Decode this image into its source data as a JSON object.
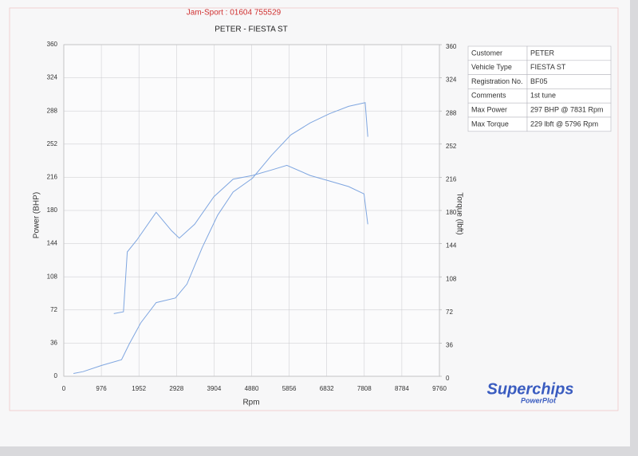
{
  "header": {
    "company": "Jam-Sport : 01604 755529"
  },
  "chart_data": {
    "type": "line",
    "title": "PETER - FIESTA ST",
    "x_label": "Rpm",
    "y_label": "Power (BHP)",
    "y2_label": "Torque (lbft)",
    "xlim": [
      0,
      9760
    ],
    "xticks": [
      0,
      976,
      1952,
      2928,
      3904,
      4880,
      5856,
      6832,
      7808,
      8784,
      9760
    ],
    "ylim": [
      0,
      360
    ],
    "yticks": [
      0,
      36,
      72,
      108,
      144,
      180,
      216,
      252,
      288,
      324,
      360
    ],
    "y2lim": [
      0,
      360
    ],
    "y2ticks": [
      0,
      36,
      72,
      108,
      144,
      180,
      216,
      252,
      288,
      324,
      360
    ],
    "grid": true,
    "series": [
      {
        "color": "#7fa6e0",
        "x": [
          250,
          500,
          1000,
          1500,
          1700,
          2000,
          2400,
          2900,
          3200,
          3600,
          4000,
          4400,
          4900,
          5400,
          5900,
          6400,
          6900,
          7400,
          7831,
          7900
        ],
        "values": [
          3,
          5,
          12,
          18,
          35,
          58,
          80,
          85,
          100,
          140,
          175,
          200,
          215,
          240,
          262,
          275,
          285,
          293,
          297,
          260
        ]
      },
      {
        "color": "#7fa6e0",
        "axis": "y2",
        "x": [
          1300,
          1550,
          1650,
          1900,
          2400,
          2800,
          3000,
          3400,
          3900,
          4400,
          4900,
          5400,
          5796,
          6400,
          6900,
          7400,
          7800,
          7900
        ],
        "values": [
          68,
          70,
          135,
          148,
          178,
          158,
          150,
          165,
          195,
          214,
          218,
          224,
          229,
          218,
          212,
          206,
          198,
          165
        ]
      }
    ]
  },
  "table": {
    "rows": [
      [
        "Customer",
        "PETER"
      ],
      [
        "Vehicle Type",
        "FIESTA ST"
      ],
      [
        "Registration No.",
        "BF05"
      ],
      [
        "Comments",
        "1st tune"
      ],
      [
        "Max Power",
        "297 BHP @ 7831 Rpm"
      ],
      [
        "Max Torque",
        "229 lbft @ 5796 Rpm"
      ]
    ]
  },
  "logo": {
    "name": "Superchips",
    "product": "PowerPlot"
  }
}
